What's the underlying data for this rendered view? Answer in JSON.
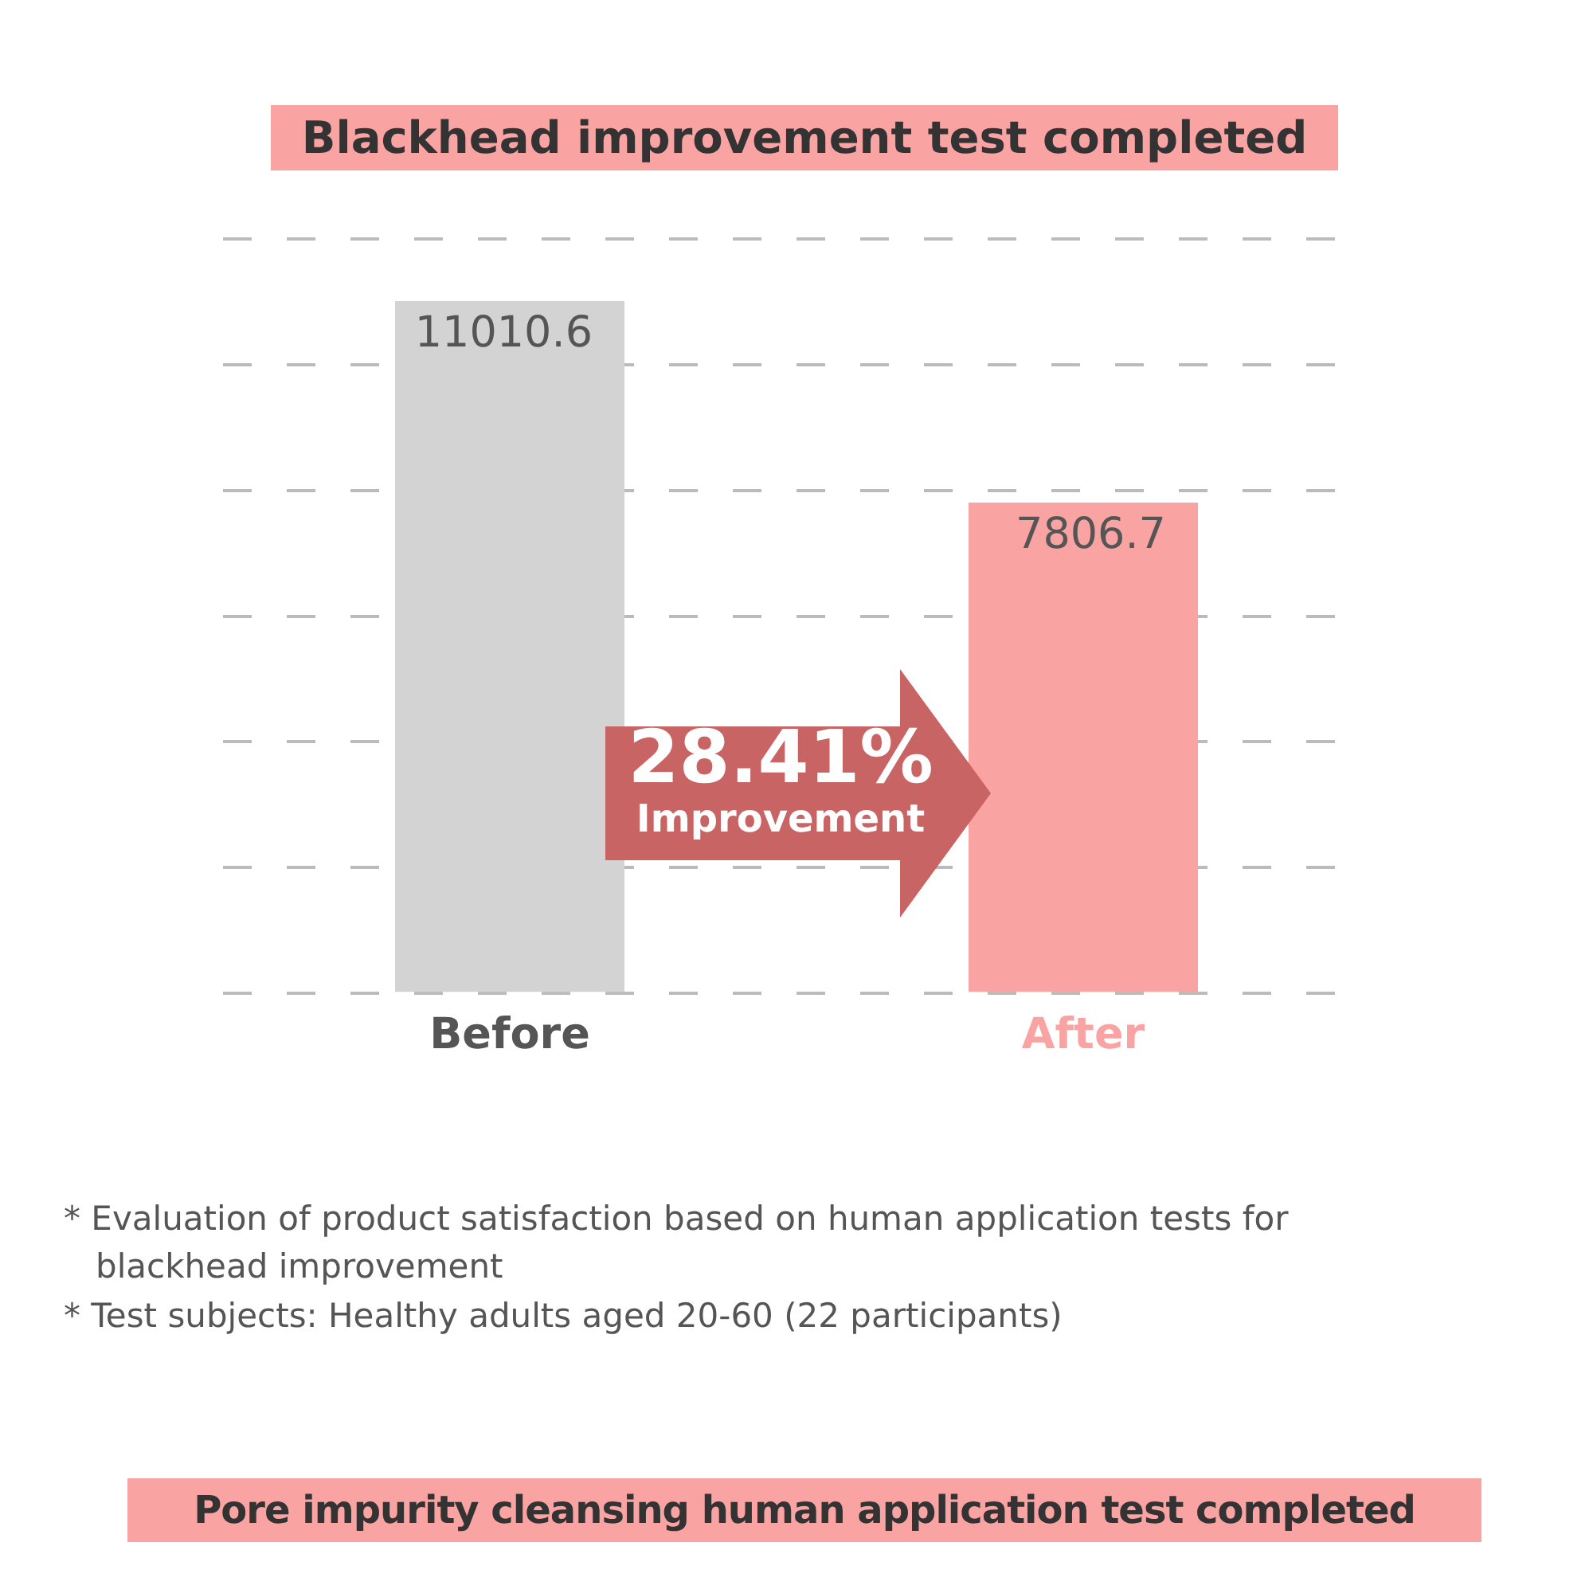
{
  "chart_data": {
    "type": "bar",
    "title": "Blackhead improvement test completed",
    "subtitle": "Pore impurity cleansing human application test completed",
    "categories": [
      "Before",
      "After"
    ],
    "values": [
      11010.6,
      7806.7
    ],
    "colors": [
      "#d3d3d3",
      "#f9a3a3"
    ],
    "ylim": [
      0,
      12000
    ],
    "yticks": [
      {
        "value": 0,
        "label": null
      },
      {
        "value": 2000,
        "label": null
      },
      {
        "value": 4000,
        "label": null
      },
      {
        "value": 6000,
        "label": null
      },
      {
        "value": 8000,
        "label": null
      },
      {
        "value": 10000,
        "label": null
      },
      {
        "value": 12000,
        "label": null
      }
    ],
    "tick_labels": "x",
    "grid": "y",
    "line_style": "dashed",
    "legend": false,
    "data_labels": true,
    "annotations": [
      "28.41%\nImprovement",
      "* Evaluation of product satisfaction based on human application tests for blackhead improvement",
      "* Test subjects: Healthy adults aged 20-60 (22 participants)"
    ]
  }
}
